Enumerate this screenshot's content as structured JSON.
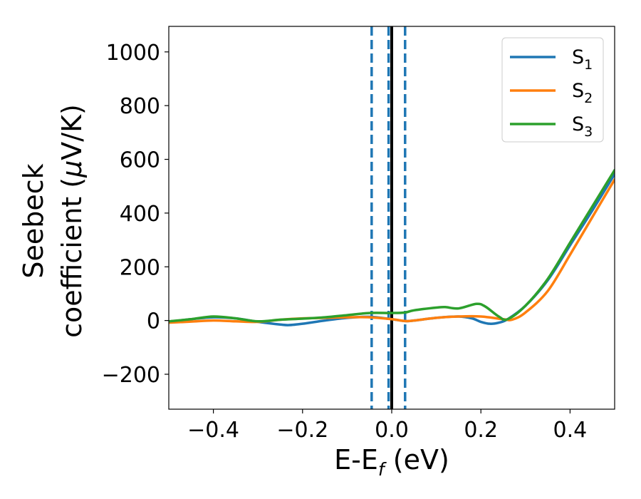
{
  "chart_data": {
    "type": "line",
    "title": "",
    "xlabel": {
      "main": "E-E",
      "sub": "f",
      "unit": " (eV)"
    },
    "ylabel": {
      "line1": "Seebeck",
      "line2_pre": "coefficient  (",
      "mu": "μ",
      "line2_post": "V/K)"
    },
    "xlim": [
      -0.5,
      0.5
    ],
    "ylim": [
      -330,
      1095
    ],
    "xticks": [
      -0.4,
      -0.2,
      0.0,
      0.2,
      0.4
    ],
    "xtick_labels": [
      "−0.4",
      "−0.2",
      "0.0",
      "0.2",
      "0.4"
    ],
    "yticks": [
      -200,
      0,
      200,
      400,
      600,
      800,
      1000
    ],
    "ytick_labels": [
      "−200",
      "0",
      "200",
      "400",
      "600",
      "800",
      "1000"
    ],
    "grid": false,
    "legend_position": "top-right",
    "vlines": [
      {
        "x": -0.045,
        "style": "dashed",
        "color": "#1f77b4"
      },
      {
        "x": -0.007,
        "style": "dashed",
        "color": "#1f77b4"
      },
      {
        "x": 0.0,
        "style": "solid",
        "color": "#000000"
      },
      {
        "x": 0.03,
        "style": "dashed",
        "color": "#1f77b4"
      }
    ],
    "series": [
      {
        "name": "S",
        "sub": "1",
        "color": "#1f77b4",
        "x": [
          -0.5,
          -0.45,
          -0.4,
          -0.35,
          -0.3,
          -0.25,
          -0.23,
          -0.2,
          -0.15,
          -0.1,
          -0.05,
          0.0,
          0.03,
          0.05,
          0.1,
          0.15,
          0.18,
          0.2,
          0.22,
          0.24,
          0.26,
          0.3,
          0.35,
          0.4,
          0.45,
          0.5
        ],
        "y": [
          -5,
          5,
          12,
          8,
          -5,
          -15,
          -17,
          -12,
          0,
          10,
          14,
          5,
          -2,
          0,
          10,
          15,
          8,
          -5,
          -12,
          -8,
          5,
          55,
          150,
          280,
          410,
          545
        ]
      },
      {
        "name": "S",
        "sub": "2",
        "color": "#ff7f0e",
        "x": [
          -0.5,
          -0.45,
          -0.4,
          -0.35,
          -0.3,
          -0.25,
          -0.2,
          -0.15,
          -0.1,
          -0.05,
          0.0,
          0.03,
          0.05,
          0.1,
          0.15,
          0.2,
          0.25,
          0.27,
          0.3,
          0.35,
          0.4,
          0.45,
          0.5
        ],
        "y": [
          -8,
          -4,
          0,
          -3,
          -5,
          3,
          8,
          10,
          12,
          12,
          5,
          -2,
          0,
          10,
          15,
          15,
          5,
          3,
          30,
          110,
          245,
          385,
          525
        ]
      },
      {
        "name": "S",
        "sub": "3",
        "color": "#2ca02c",
        "x": [
          -0.5,
          -0.45,
          -0.4,
          -0.35,
          -0.3,
          -0.25,
          -0.2,
          -0.15,
          -0.1,
          -0.05,
          0.0,
          0.03,
          0.05,
          0.1,
          0.12,
          0.15,
          0.19,
          0.21,
          0.24,
          0.26,
          0.3,
          0.35,
          0.4,
          0.45,
          0.5
        ],
        "y": [
          -3,
          5,
          15,
          8,
          -3,
          3,
          7,
          12,
          20,
          28,
          28,
          30,
          38,
          48,
          50,
          45,
          62,
          52,
          15,
          5,
          55,
          155,
          290,
          425,
          560
        ]
      }
    ]
  }
}
